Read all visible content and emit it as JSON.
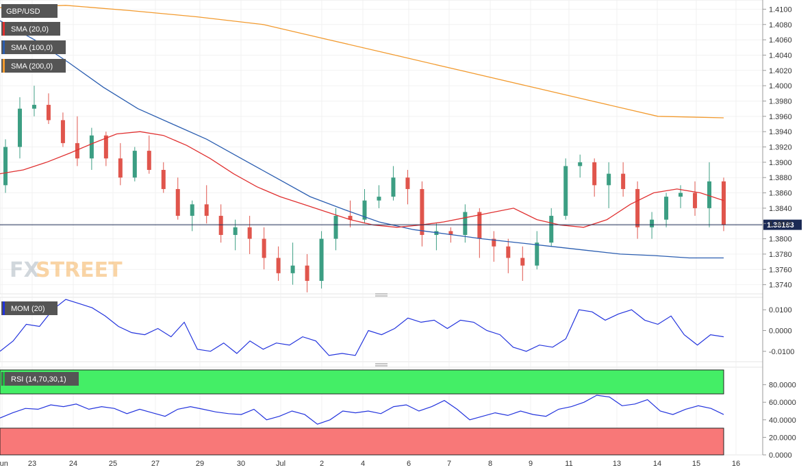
{
  "symbol": "GBP/USD",
  "legends": {
    "sma20": {
      "label": "SMA (20,0)",
      "color": "#e03030"
    },
    "sma100": {
      "label": "SMA (100,0)",
      "color": "#2a5db0"
    },
    "sma200": {
      "label": "SMA (200,0)",
      "color": "#f29a2e"
    },
    "mom": {
      "label": "MOM (20)",
      "color": "#2233dd"
    },
    "rsi": {
      "label": "RSI (14,70,30,1)",
      "color": "#2233dd"
    }
  },
  "watermark": {
    "fx": "FX",
    "street": "STREET"
  },
  "current_price": "1.38183",
  "colors": {
    "bull": "#3c9e83",
    "bear": "#e0554c",
    "overbought": "#44ee66",
    "oversold": "#f87878"
  },
  "chart_data": [
    {
      "type": "candlestick",
      "ylim": [
        1.3728,
        1.4112
      ],
      "yticks": [
        "1.4100",
        "1.4080",
        "1.4060",
        "1.4040",
        "1.4020",
        "1.4000",
        "1.3980",
        "1.3960",
        "1.3940",
        "1.3920",
        "1.3900",
        "1.3880",
        "1.3860",
        "1.3840",
        "1.3820",
        "1.3800",
        "1.3780",
        "1.3760",
        "1.3740"
      ],
      "x_labels": [
        "Jun",
        "23",
        "24",
        "25",
        "27",
        "29",
        "30",
        "Jul",
        "2",
        "4",
        "6",
        "7",
        "8",
        "9",
        "11",
        "13",
        "14",
        "15",
        "16"
      ],
      "sma20": [
        1.3885,
        1.389,
        1.39,
        1.3912,
        1.3925,
        1.3937,
        1.394,
        1.3935,
        1.3922,
        1.3905,
        1.3885,
        1.3868,
        1.3855,
        1.3845,
        1.3835,
        1.3825,
        1.3818,
        1.3815,
        1.3818,
        1.3822,
        1.3828,
        1.3834,
        1.384,
        1.3825,
        1.3818,
        1.3815,
        1.3825,
        1.3845,
        1.386,
        1.3865,
        1.386,
        1.385
      ],
      "sma100": [
        1.4085,
        1.406,
        1.403,
        1.3998,
        1.397,
        1.395,
        1.393,
        1.3905,
        1.388,
        1.3855,
        1.3838,
        1.3822,
        1.3812,
        1.3806,
        1.38,
        1.3795,
        1.379,
        1.3785,
        1.378,
        1.3778,
        1.3775,
        1.3775
      ],
      "sma200": [
        1.4102,
        1.4105,
        1.4098,
        1.409,
        1.408,
        1.406,
        1.404,
        1.402,
        1.4,
        1.398,
        1.396,
        1.3958
      ],
      "candles": [
        [
          1.387,
          1.393,
          1.386,
          1.392
        ],
        [
          1.392,
          1.3985,
          1.3905,
          1.397
        ],
        [
          1.397,
          1.4,
          1.396,
          1.3975
        ],
        [
          1.3975,
          1.399,
          1.395,
          1.3955
        ],
        [
          1.3955,
          1.3965,
          1.392,
          1.3925
        ],
        [
          1.3925,
          1.396,
          1.3895,
          1.3905
        ],
        [
          1.3905,
          1.3945,
          1.389,
          1.3935
        ],
        [
          1.3935,
          1.394,
          1.3895,
          1.3905
        ],
        [
          1.3905,
          1.3925,
          1.387,
          1.388
        ],
        [
          1.388,
          1.392,
          1.3875,
          1.3915
        ],
        [
          1.3915,
          1.3935,
          1.3885,
          1.389
        ],
        [
          1.389,
          1.39,
          1.386,
          1.3865
        ],
        [
          1.3865,
          1.388,
          1.3825,
          1.383
        ],
        [
          1.383,
          1.385,
          1.381,
          1.3845
        ],
        [
          1.3845,
          1.387,
          1.382,
          1.383
        ],
        [
          1.383,
          1.3845,
          1.3795,
          1.3805
        ],
        [
          1.3805,
          1.3825,
          1.3785,
          1.3815
        ],
        [
          1.3815,
          1.383,
          1.378,
          1.38
        ],
        [
          1.38,
          1.3815,
          1.376,
          1.3775
        ],
        [
          1.3775,
          1.379,
          1.3745,
          1.3755
        ],
        [
          1.3755,
          1.3795,
          1.374,
          1.3765
        ],
        [
          1.3765,
          1.378,
          1.373,
          1.3745
        ],
        [
          1.3745,
          1.381,
          1.3735,
          1.38
        ],
        [
          1.38,
          1.384,
          1.3785,
          1.383
        ],
        [
          1.383,
          1.385,
          1.3815,
          1.3825
        ],
        [
          1.3825,
          1.3865,
          1.382,
          1.385
        ],
        [
          1.385,
          1.387,
          1.384,
          1.3855
        ],
        [
          1.3855,
          1.3895,
          1.385,
          1.388
        ],
        [
          1.388,
          1.389,
          1.3845,
          1.3865
        ],
        [
          1.3865,
          1.3875,
          1.379,
          1.3805
        ],
        [
          1.3805,
          1.382,
          1.3785,
          1.381
        ],
        [
          1.381,
          1.3815,
          1.3795,
          1.3805
        ],
        [
          1.3805,
          1.3845,
          1.3795,
          1.3835
        ],
        [
          1.3835,
          1.384,
          1.3775,
          1.38
        ],
        [
          1.38,
          1.381,
          1.377,
          1.379
        ],
        [
          1.379,
          1.38,
          1.3755,
          1.3775
        ],
        [
          1.3775,
          1.379,
          1.3745,
          1.3765
        ],
        [
          1.3765,
          1.381,
          1.376,
          1.3795
        ],
        [
          1.3795,
          1.384,
          1.379,
          1.383
        ],
        [
          1.383,
          1.3905,
          1.3825,
          1.3895
        ],
        [
          1.3895,
          1.391,
          1.388,
          1.39
        ],
        [
          1.39,
          1.3905,
          1.3855,
          1.387
        ],
        [
          1.387,
          1.39,
          1.384,
          1.3885
        ],
        [
          1.3885,
          1.39,
          1.3855,
          1.3865
        ],
        [
          1.3865,
          1.3875,
          1.38,
          1.3815
        ],
        [
          1.3815,
          1.3835,
          1.38,
          1.3825
        ],
        [
          1.3825,
          1.386,
          1.3815,
          1.3855
        ],
        [
          1.3855,
          1.387,
          1.384,
          1.386
        ],
        [
          1.386,
          1.3875,
          1.383,
          1.384
        ],
        [
          1.384,
          1.39,
          1.3815,
          1.3875
        ],
        [
          1.3875,
          1.388,
          1.381,
          1.3818
        ]
      ]
    },
    {
      "type": "line",
      "name": "MOM (20)",
      "ylim": [
        -0.015,
        0.016
      ],
      "yticks": [
        "0.0100",
        "0.0000",
        "-0.0100"
      ],
      "values": [
        -0.01,
        -0.005,
        0.003,
        0.002,
        0.01,
        0.015,
        0.013,
        0.011,
        0.007,
        0.002,
        -0.001,
        -0.002,
        0.001,
        -0.003,
        0.004,
        -0.009,
        -0.01,
        -0.006,
        -0.011,
        -0.005,
        -0.009,
        -0.006,
        -0.007,
        -0.003,
        -0.005,
        -0.012,
        -0.011,
        -0.012,
        0.0,
        -0.002,
        0.001,
        0.006,
        0.004,
        0.005,
        0.001,
        0.005,
        0.004,
        0.0,
        -0.002,
        -0.008,
        -0.01,
        -0.007,
        -0.008,
        -0.004,
        0.01,
        0.009,
        0.005,
        0.008,
        0.01,
        0.005,
        0.003,
        0.007,
        -0.002,
        -0.007,
        -0.002,
        -0.003
      ]
    },
    {
      "type": "line",
      "name": "RSI (14,70,30,1)",
      "ylim": [
        0,
        100
      ],
      "overbought": 70,
      "oversold": 30,
      "yticks": [
        "80.0000",
        "60.0000",
        "40.0000",
        "20.0000",
        "0.0000"
      ],
      "values": [
        42,
        48,
        53,
        52,
        57,
        55,
        58,
        52,
        55,
        53,
        47,
        52,
        48,
        44,
        52,
        55,
        52,
        49,
        47,
        46,
        52,
        40,
        44,
        50,
        46,
        35,
        40,
        50,
        48,
        50,
        47,
        55,
        57,
        50,
        55,
        62,
        52,
        40,
        44,
        48,
        45,
        50,
        46,
        44,
        52,
        55,
        60,
        68,
        66,
        56,
        58,
        63,
        50,
        46,
        52,
        56,
        53,
        46
      ]
    }
  ]
}
